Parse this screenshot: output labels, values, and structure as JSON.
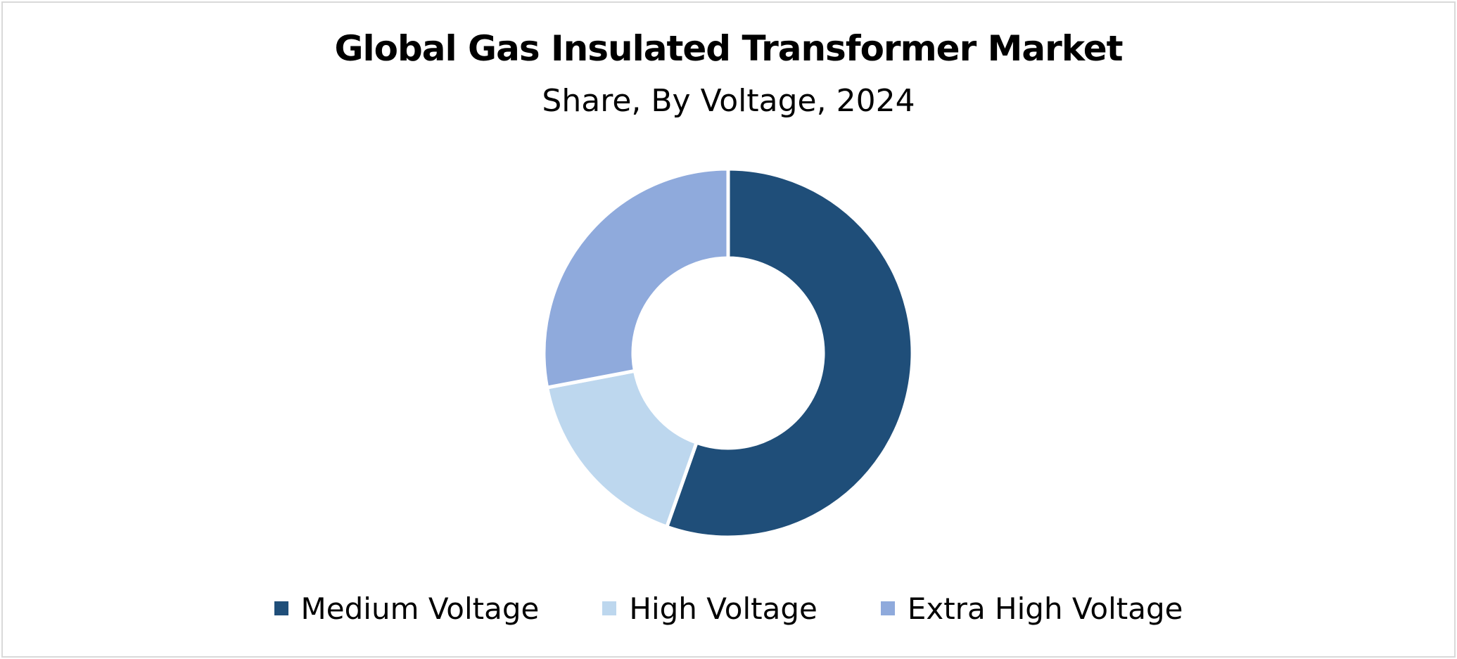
{
  "chart_data": {
    "type": "pie",
    "style": "donut",
    "title": "Global Gas Insulated Transformer Market",
    "subtitle": "Share, By Voltage, 2024",
    "categories": [
      "Medium Voltage",
      "High Voltage",
      "Extra High Voltage"
    ],
    "values": [
      55.4,
      16.6,
      28.0
    ],
    "colors": [
      "#1f4e79",
      "#bdd7ee",
      "#8faadc"
    ],
    "legend_position": "bottom"
  }
}
